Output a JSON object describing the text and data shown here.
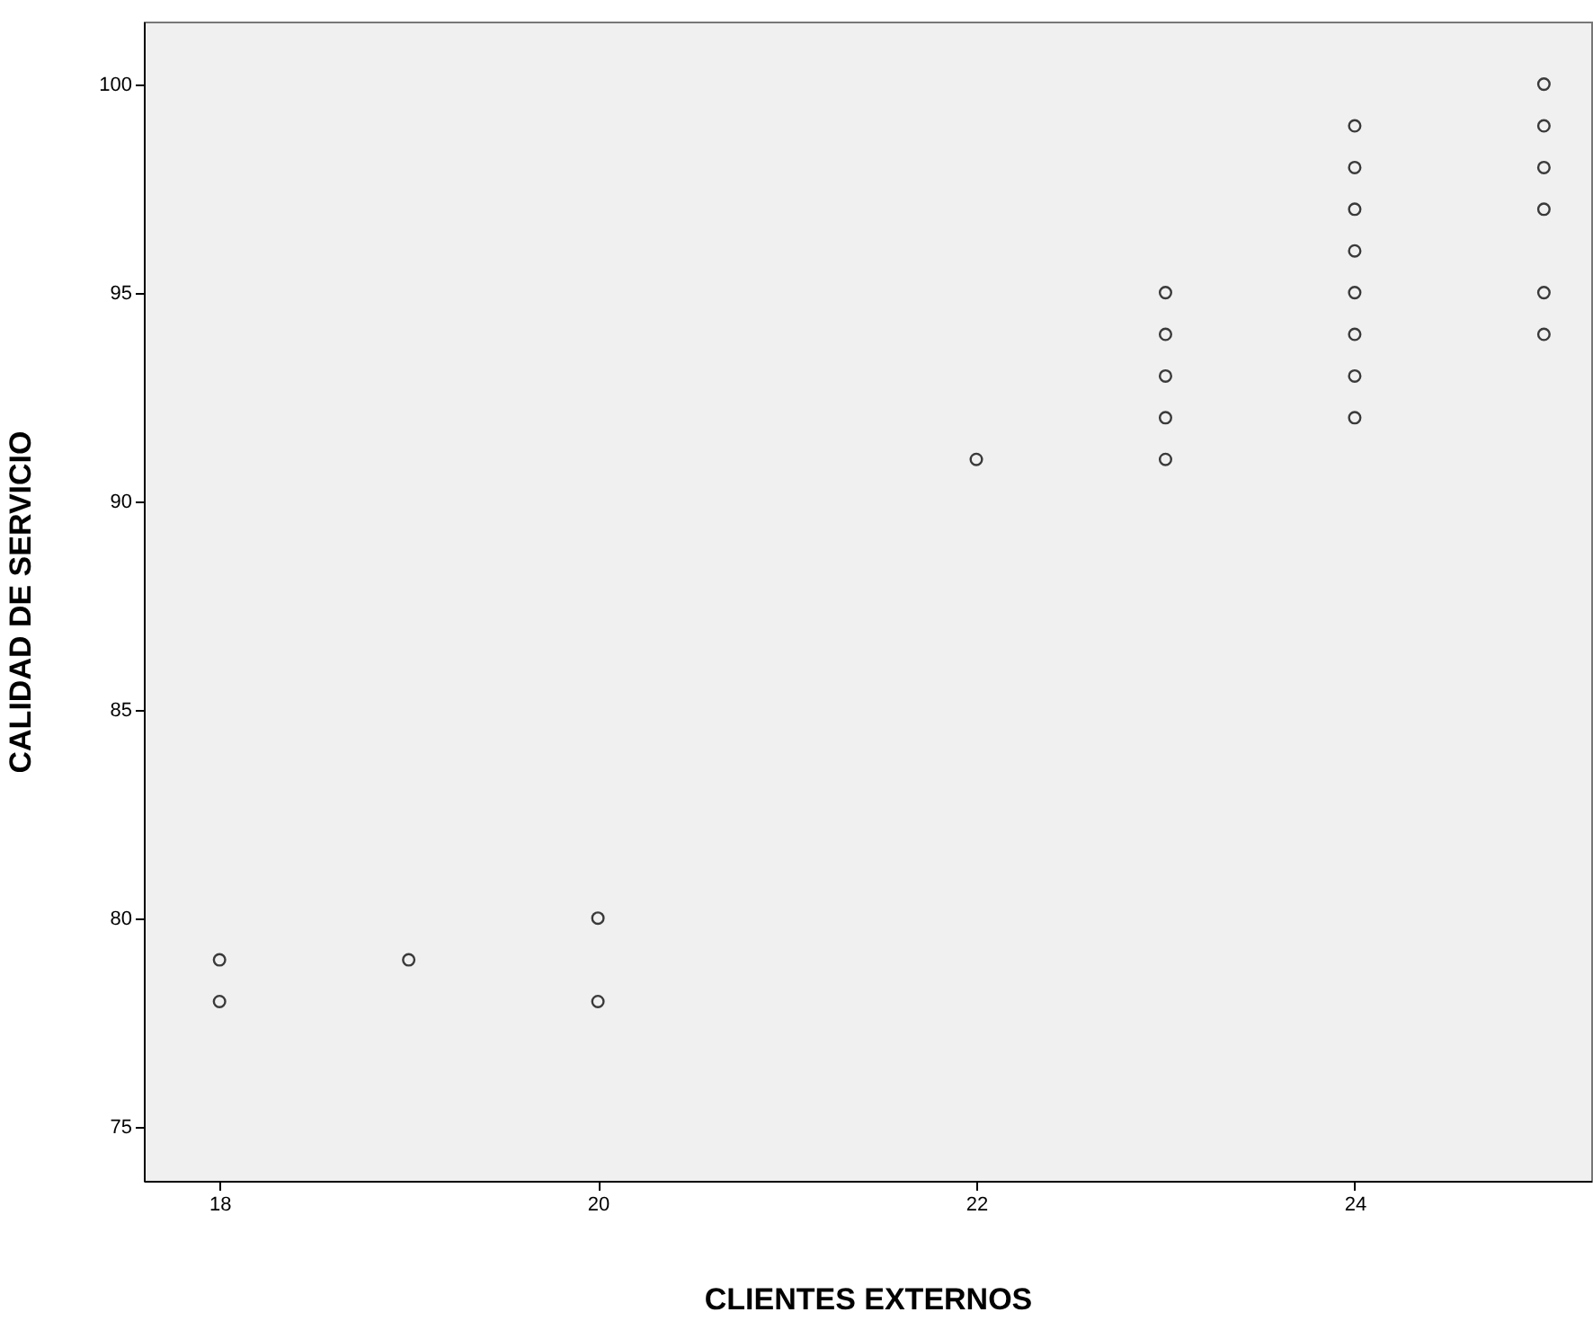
{
  "chart_data": {
    "type": "scatter",
    "xlabel": "CLIENTES EXTERNOS",
    "ylabel": "CALIDAD DE SERVICIO",
    "xlim": [
      17.6,
      25.25
    ],
    "ylim": [
      73.7,
      101.5
    ],
    "xticks": [
      18,
      20,
      22,
      24
    ],
    "yticks": [
      75,
      80,
      85,
      90,
      95,
      100
    ],
    "marker": "circle",
    "series": [
      {
        "color": "#3a3a3a",
        "x": [
          18,
          18,
          19,
          20,
          20,
          22,
          23,
          23,
          23,
          23,
          23,
          24,
          24,
          24,
          24,
          24,
          24,
          24,
          24,
          25,
          25,
          25,
          25,
          25,
          25
        ],
        "values": [
          79,
          78,
          79,
          80,
          78,
          91,
          95,
          94,
          93,
          92,
          91,
          99,
          98,
          97,
          96,
          95,
          94,
          93,
          92,
          100,
          99,
          98,
          97,
          95,
          94
        ]
      }
    ]
  }
}
